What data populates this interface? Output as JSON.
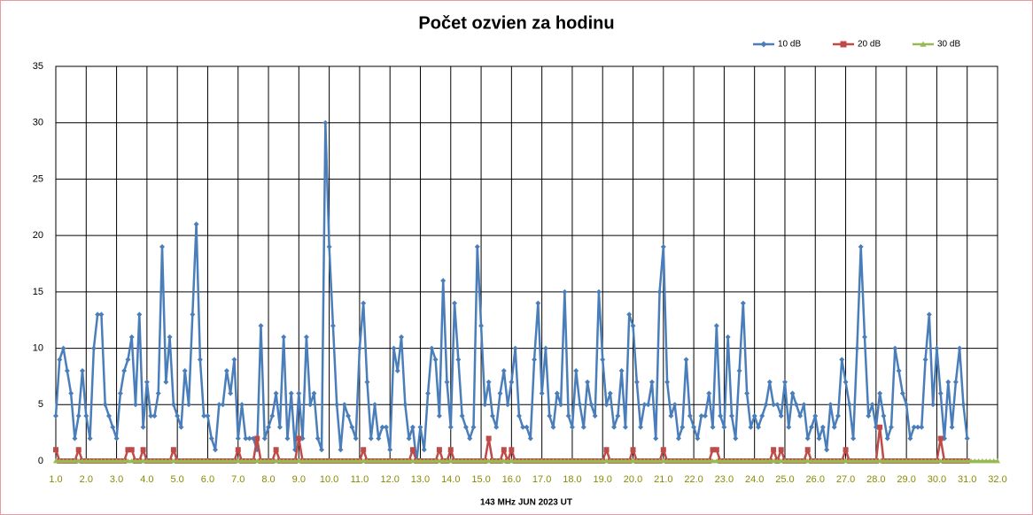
{
  "chart_data": {
    "type": "line",
    "title": "Počet ozvien za hodinu",
    "x_label": "143 MHz JUN  2023  UT",
    "xlim": [
      1,
      32
    ],
    "ylim": [
      0,
      35
    ],
    "grid": true,
    "legend": "top-right",
    "yticks": [
      0,
      5,
      10,
      15,
      20,
      25,
      30,
      35
    ],
    "xticks": [
      {
        "value": 1,
        "label": "1.0"
      },
      {
        "value": 2,
        "label": "2.0"
      },
      {
        "value": 3,
        "label": "3.0"
      },
      {
        "value": 4,
        "label": "4.0"
      },
      {
        "value": 5,
        "label": "5.0"
      },
      {
        "value": 6,
        "label": "6.0"
      },
      {
        "value": 7,
        "label": "7.0"
      },
      {
        "value": 8,
        "label": "8.0"
      },
      {
        "value": 9,
        "label": "9.0"
      },
      {
        "value": 10,
        "label": "10.0"
      },
      {
        "value": 11,
        "label": "11.0"
      },
      {
        "value": 12,
        "label": "12.0"
      },
      {
        "value": 13,
        "label": "13.0"
      },
      {
        "value": 14,
        "label": "14.0"
      },
      {
        "value": 15,
        "label": "15.0"
      },
      {
        "value": 16,
        "label": "16.0"
      },
      {
        "value": 17,
        "label": "17.0"
      },
      {
        "value": 18,
        "label": "18.0"
      },
      {
        "value": 19,
        "label": "19.0"
      },
      {
        "value": 20,
        "label": "20.0"
      },
      {
        "value": 21,
        "label": "21.0"
      },
      {
        "value": 22,
        "label": "22.0"
      },
      {
        "value": 23,
        "label": "23.0"
      },
      {
        "value": 24,
        "label": "24.0"
      },
      {
        "value": 25,
        "label": "25.0"
      },
      {
        "value": 26,
        "label": "26.0"
      },
      {
        "value": 27,
        "label": "27.0"
      },
      {
        "value": 28,
        "label": "28.0"
      },
      {
        "value": 29,
        "label": "29.0"
      },
      {
        "value": 30,
        "label": "30.0"
      },
      {
        "value": 31,
        "label": "31.0"
      },
      {
        "value": 32,
        "label": "32.0"
      }
    ],
    "x": [
      1,
      1.125,
      1.25,
      1.375,
      1.5,
      1.625,
      1.75,
      1.875,
      2,
      2.125,
      2.25,
      2.375,
      2.5,
      2.625,
      2.75,
      2.875,
      3,
      3.125,
      3.25,
      3.375,
      3.5,
      3.625,
      3.75,
      3.875,
      4,
      4.125,
      4.25,
      4.375,
      4.5,
      4.625,
      4.75,
      4.875,
      5,
      5.125,
      5.25,
      5.375,
      5.5,
      5.625,
      5.75,
      5.875,
      6,
      6.125,
      6.25,
      6.375,
      6.5,
      6.625,
      6.75,
      6.875,
      7,
      7.125,
      7.25,
      7.375,
      7.5,
      7.625,
      7.75,
      7.875,
      8,
      8.125,
      8.25,
      8.375,
      8.5,
      8.625,
      8.75,
      8.875,
      9,
      9.125,
      9.25,
      9.375,
      9.5,
      9.625,
      9.75,
      9.875,
      10,
      10.125,
      10.25,
      10.375,
      10.5,
      10.625,
      10.75,
      10.875,
      11,
      11.125,
      11.25,
      11.375,
      11.5,
      11.625,
      11.75,
      11.875,
      12,
      12.125,
      12.25,
      12.375,
      12.5,
      12.625,
      12.75,
      12.875,
      13,
      13.125,
      13.25,
      13.375,
      13.5,
      13.625,
      13.75,
      13.875,
      14,
      14.125,
      14.25,
      14.375,
      14.5,
      14.625,
      14.75,
      14.875,
      15,
      15.125,
      15.25,
      15.375,
      15.5,
      15.625,
      15.75,
      15.875,
      16,
      16.125,
      16.25,
      16.375,
      16.5,
      16.625,
      16.75,
      16.875,
      17,
      17.125,
      17.25,
      17.375,
      17.5,
      17.625,
      17.75,
      17.875,
      18,
      18.125,
      18.25,
      18.375,
      18.5,
      18.625,
      18.75,
      18.875,
      19,
      19.125,
      19.25,
      19.375,
      19.5,
      19.625,
      19.75,
      19.875,
      20,
      20.125,
      20.25,
      20.375,
      20.5,
      20.625,
      20.75,
      20.875,
      21,
      21.125,
      21.25,
      21.375,
      21.5,
      21.625,
      21.75,
      21.875,
      22,
      22.125,
      22.25,
      22.375,
      22.5,
      22.625,
      22.75,
      22.875,
      23,
      23.125,
      23.25,
      23.375,
      23.5,
      23.625,
      23.75,
      23.875,
      24,
      24.125,
      24.25,
      24.375,
      24.5,
      24.625,
      24.75,
      24.875,
      25,
      25.125,
      25.25,
      25.375,
      25.5,
      25.625,
      25.75,
      25.875,
      26,
      26.125,
      26.25,
      26.375,
      26.5,
      26.625,
      26.75,
      26.875,
      27,
      27.125,
      27.25,
      27.375,
      27.5,
      27.625,
      27.75,
      27.875,
      28,
      28.125,
      28.25,
      28.375,
      28.5,
      28.625,
      28.75,
      28.875,
      29,
      29.125,
      29.25,
      29.375,
      29.5,
      29.625,
      29.75,
      29.875,
      30,
      30.125,
      30.25,
      30.375,
      30.5,
      30.625,
      30.75,
      30.875,
      31,
      31.125,
      31.25,
      31.375,
      31.5,
      31.625,
      31.75,
      31.875,
      32
    ],
    "series": [
      {
        "name": "10 dB",
        "color": "#4a7ebb",
        "marker": "diamond",
        "values": [
          4,
          9,
          10,
          8,
          6,
          2,
          4,
          8,
          4,
          2,
          10,
          13,
          13,
          5,
          4,
          3,
          2,
          6,
          8,
          9,
          11,
          5,
          13,
          3,
          7,
          4,
          4,
          6,
          19,
          7,
          11,
          5,
          4,
          3,
          8,
          5,
          13,
          21,
          9,
          4,
          4,
          2,
          1,
          5,
          5,
          8,
          6,
          9,
          2,
          5,
          2,
          2,
          2,
          1,
          12,
          2,
          3,
          4,
          6,
          3,
          11,
          2,
          6,
          1,
          6,
          2,
          11,
          5,
          6,
          2,
          1,
          30,
          19,
          12,
          5,
          1,
          5,
          4,
          3,
          2,
          10,
          14,
          7,
          2,
          5,
          2,
          3,
          3,
          1,
          10,
          8,
          11,
          5,
          2,
          3,
          0,
          3,
          1,
          6,
          10,
          9,
          4,
          16,
          7,
          3,
          14,
          9,
          4,
          3,
          2,
          3,
          19,
          12,
          5,
          7,
          4,
          3,
          6,
          8,
          5,
          7,
          10,
          4,
          3,
          3,
          2,
          9,
          14,
          6,
          10,
          4,
          3,
          6,
          5,
          15,
          4,
          3,
          8,
          5,
          3,
          7,
          5,
          4,
          15,
          9,
          5,
          6,
          3,
          4,
          8,
          3,
          13,
          12,
          7,
          3,
          5,
          5,
          7,
          2,
          15,
          19,
          7,
          4,
          5,
          2,
          3,
          9,
          4,
          3,
          2,
          4,
          4,
          6,
          3,
          12,
          4,
          3,
          11,
          4,
          2,
          8,
          14,
          6,
          3,
          4,
          3,
          4,
          5,
          7,
          5,
          5,
          4,
          7,
          3,
          6,
          5,
          4,
          5,
          2,
          3,
          4,
          2,
          3,
          1,
          5,
          3,
          4,
          9,
          7,
          5,
          2,
          10,
          19,
          11,
          4,
          5,
          3,
          6,
          4,
          2,
          3,
          10,
          8,
          6,
          5,
          2,
          3,
          3,
          3,
          9,
          13,
          5,
          10,
          6,
          2,
          7,
          3,
          7,
          10,
          5,
          2,
          null,
          null,
          null,
          null,
          null,
          null,
          null,
          null
        ]
      },
      {
        "name": "20 dB",
        "color": "#be4b48",
        "marker": "square",
        "values": [
          1,
          0,
          0,
          0,
          0,
          0,
          1,
          0,
          0,
          0,
          0,
          0,
          0,
          0,
          0,
          0,
          0,
          0,
          0,
          1,
          1,
          0,
          0,
          1,
          0,
          0,
          0,
          0,
          0,
          0,
          0,
          1,
          0,
          0,
          0,
          0,
          0,
          0,
          0,
          0,
          0,
          0,
          0,
          0,
          0,
          0,
          0,
          0,
          1,
          0,
          0,
          0,
          0,
          2,
          0,
          0,
          0,
          0,
          1,
          0,
          0,
          0,
          0,
          0,
          2,
          0,
          0,
          0,
          0,
          0,
          0,
          0,
          0,
          0,
          0,
          0,
          0,
          0,
          0,
          0,
          0,
          1,
          0,
          0,
          0,
          0,
          0,
          0,
          0,
          0,
          0,
          0,
          0,
          0,
          1,
          0,
          0,
          0,
          0,
          0,
          0,
          1,
          0,
          0,
          1,
          0,
          0,
          0,
          0,
          0,
          0,
          0,
          0,
          0,
          2,
          0,
          0,
          0,
          1,
          0,
          1,
          0,
          0,
          0,
          0,
          0,
          0,
          0,
          0,
          0,
          0,
          0,
          0,
          0,
          0,
          0,
          0,
          0,
          0,
          0,
          0,
          0,
          0,
          0,
          0,
          1,
          0,
          0,
          0,
          0,
          0,
          0,
          1,
          0,
          0,
          0,
          0,
          0,
          0,
          0,
          1,
          0,
          0,
          0,
          0,
          0,
          0,
          0,
          0,
          0,
          0,
          0,
          0,
          1,
          1,
          0,
          0,
          0,
          0,
          0,
          0,
          0,
          0,
          0,
          0,
          0,
          0,
          0,
          0,
          1,
          0,
          1,
          0,
          0,
          0,
          0,
          0,
          0,
          1,
          0,
          0,
          0,
          0,
          0,
          0,
          0,
          0,
          0,
          1,
          0,
          0,
          0,
          0,
          0,
          0,
          0,
          0,
          3,
          0,
          0,
          0,
          0,
          0,
          0,
          0,
          0,
          0,
          0,
          0,
          0,
          0,
          0,
          0,
          2,
          0,
          0,
          0,
          0,
          0,
          0,
          0,
          null,
          null,
          null,
          null,
          null,
          null,
          null,
          null
        ]
      },
      {
        "name": "30 dB",
        "color": "#98b954",
        "marker": "triangle",
        "values": [
          0,
          0,
          0,
          0,
          0,
          0,
          0,
          0,
          0,
          0,
          0,
          0,
          0,
          0,
          0,
          0,
          0,
          0,
          0,
          0,
          0,
          0,
          0,
          0,
          0,
          0,
          0,
          0,
          0,
          0,
          0,
          0,
          0,
          0,
          0,
          0,
          0,
          0,
          0,
          0,
          0,
          0,
          0,
          0,
          0,
          0,
          0,
          0,
          0,
          0,
          0,
          0,
          0,
          0,
          0,
          0,
          0,
          0,
          0,
          0,
          0,
          0,
          0,
          0,
          0,
          0,
          0,
          0,
          0,
          0,
          0,
          0,
          0,
          0,
          0,
          0,
          0,
          0,
          0,
          0,
          0,
          0,
          0,
          0,
          0,
          0,
          0,
          0,
          0,
          0,
          0,
          0,
          0,
          0,
          0,
          0,
          0,
          0,
          0,
          0,
          0,
          0,
          0,
          0,
          0,
          0,
          0,
          0,
          0,
          0,
          0,
          0,
          0,
          0,
          0,
          0,
          0,
          0,
          0,
          0,
          0,
          0,
          0,
          0,
          0,
          0,
          0,
          0,
          0,
          0,
          0,
          0,
          0,
          0,
          0,
          0,
          0,
          0,
          0,
          0,
          0,
          0,
          0,
          0,
          0,
          0,
          0,
          0,
          0,
          0,
          0,
          0,
          0,
          0,
          0,
          0,
          0,
          0,
          0,
          0,
          0,
          0,
          0,
          0,
          0,
          0,
          0,
          0,
          0,
          0,
          0,
          0,
          0,
          0,
          0,
          0,
          0,
          0,
          0,
          0,
          0,
          0,
          0,
          0,
          0,
          0,
          0,
          0,
          0,
          0,
          0,
          0,
          0,
          0,
          0,
          0,
          0,
          0,
          0,
          0,
          0,
          0,
          0,
          0,
          0,
          0,
          0,
          0,
          0,
          0,
          0,
          0,
          0,
          0,
          0,
          0,
          0,
          0,
          0,
          0,
          0,
          0,
          0,
          0,
          0,
          0,
          0,
          0,
          0,
          0,
          0,
          0,
          0,
          0,
          0,
          0,
          0,
          0,
          0,
          0,
          0,
          0,
          0,
          0,
          0,
          0,
          0,
          0,
          0
        ]
      }
    ]
  }
}
